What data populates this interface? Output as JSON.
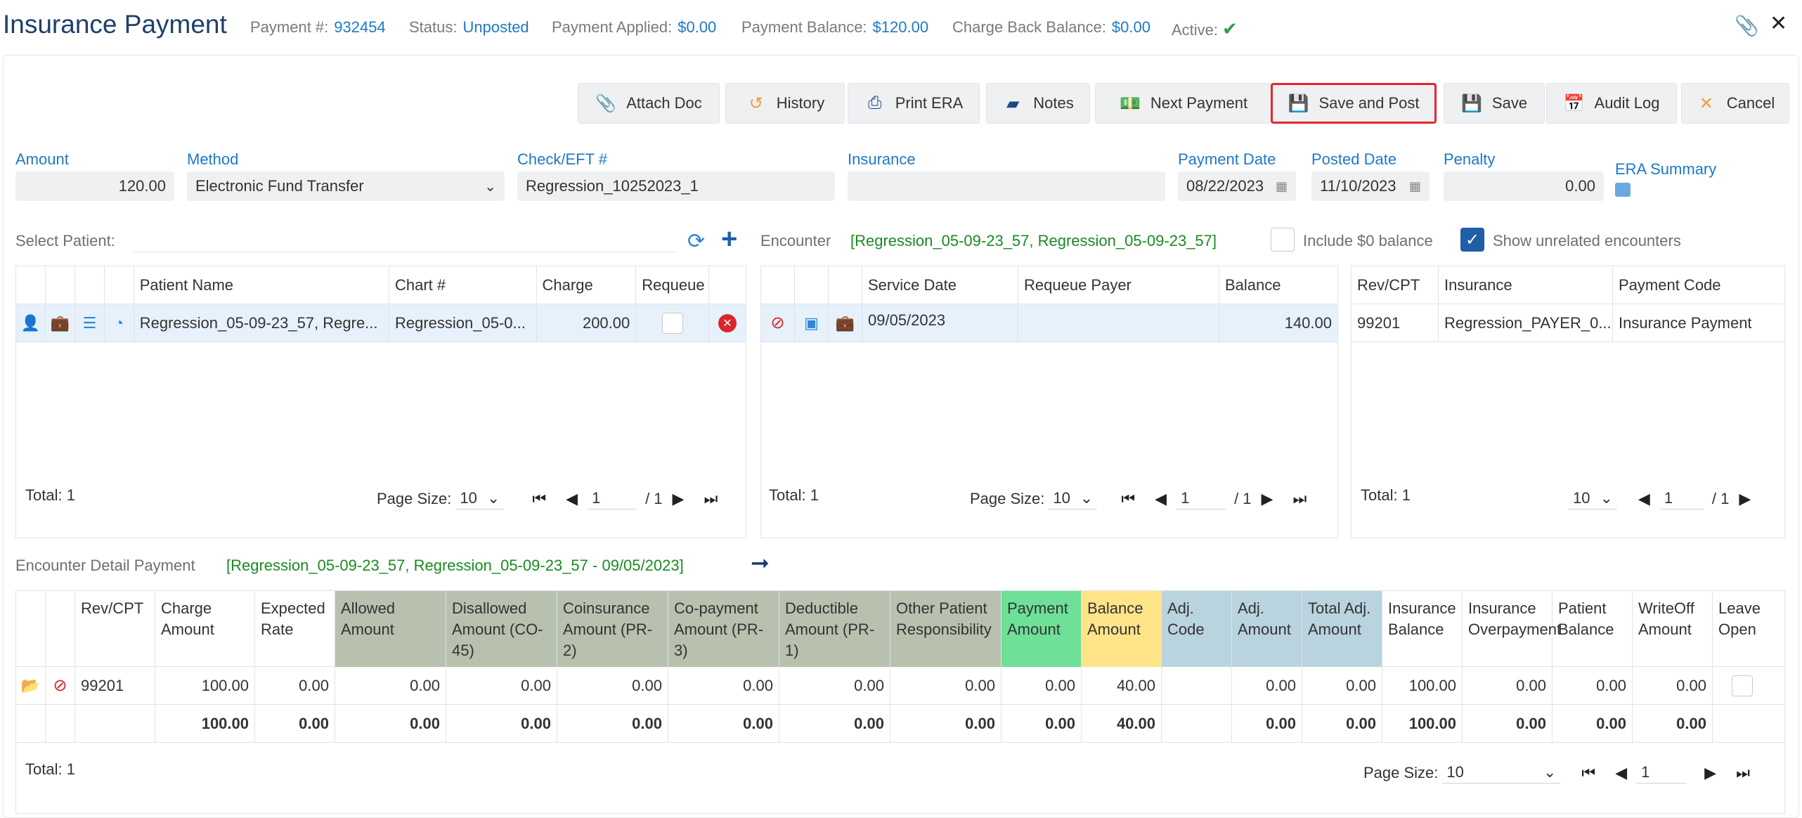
{
  "header": {
    "title": "Insurance Payment",
    "payment_no_label": "Payment #:",
    "payment_no": "932454",
    "status_label": "Status:",
    "status": "Unposted",
    "applied_label": "Payment Applied:",
    "applied": "$0.00",
    "balance_label": "Payment Balance:",
    "balance": "$120.00",
    "chargeback_label": "Charge Back Balance:",
    "chargeback": "$0.00",
    "active_label": "Active:"
  },
  "toolbar": {
    "attach_doc": "Attach Doc",
    "history": "History",
    "print_era": "Print ERA",
    "notes": "Notes",
    "next_payment": "Next Payment",
    "save_and_post": "Save and Post",
    "save": "Save",
    "audit_log": "Audit Log",
    "cancel": "Cancel"
  },
  "form": {
    "amount_label": "Amount",
    "amount": "120.00",
    "method_label": "Method",
    "method": "Electronic Fund Transfer",
    "check_label": "Check/EFT #",
    "check": "Regression_10252023_1",
    "insurance_label": "Insurance",
    "insurance": "",
    "payment_date_label": "Payment Date",
    "payment_date": "08/22/2023",
    "posted_date_label": "Posted Date",
    "posted_date": "11/10/2023",
    "penalty_label": "Penalty",
    "penalty": "0.00",
    "era_summary_label": "ERA Summary"
  },
  "select_patient": {
    "label": "Select Patient:",
    "encounter_label": "Encounter",
    "encounter_value": "[Regression_05-09-23_57, Regression_05-09-23_57]",
    "include_zero_label": "Include $0 balance",
    "show_unrelated_label": "Show unrelated encounters"
  },
  "patient_grid": {
    "headers": [
      "Patient Name",
      "Chart #",
      "Charge",
      "Requeue"
    ],
    "row": {
      "name": "Regression_05-09-23_57, Regre...",
      "chart": "Regression_05-0...",
      "charge": "200.00"
    },
    "total": "Total: 1",
    "page_size_label": "Page Size:",
    "page_size": "10",
    "page": "1",
    "of_pages": "/ 1"
  },
  "encounter_grid": {
    "headers": [
      "Service Date",
      "Requeue Payer",
      "Balance"
    ],
    "row": {
      "service_date": "09/05/2023",
      "requeue_payer": "",
      "balance": "140.00"
    },
    "total": "Total: 1",
    "page_size_label": "Page Size:",
    "page_size": "10",
    "page": "1",
    "of_pages": "/ 1"
  },
  "cpt_grid": {
    "headers": [
      "Rev/CPT",
      "Insurance",
      "Payment Code"
    ],
    "row": {
      "rev_cpt": "99201",
      "insurance": "Regression_PAYER_0...",
      "payment_code": "Insurance Payment"
    },
    "total": "Total: 1",
    "page_size": "10",
    "page": "1",
    "of_pages": "/ 1"
  },
  "detail": {
    "label": "Encounter Detail Payment",
    "value": "[Regression_05-09-23_57, Regression_05-09-23_57 - 09/05/2023]",
    "headers": {
      "rev_cpt": "Rev/CPT",
      "charge_amount": "Charge Amount",
      "expected_rate": "Expected Rate",
      "allowed_amount": "Allowed Amount",
      "disallowed": "Disallowed Amount (CO-45)",
      "coinsurance": "Coinsurance Amount (PR-2)",
      "copayment": "Co-payment Amount (PR-3)",
      "deductible": "Deductible Amount (PR-1)",
      "other_resp": "Other Patient Responsibility",
      "payment_amount": "Payment Amount",
      "balance_amount": "Balance Amount",
      "adj_code": "Adj. Code",
      "adj_amount": "Adj. Amount",
      "total_adj": "Total Adj. Amount",
      "ins_balance": "Insurance Balance",
      "ins_overpayment": "Insurance Overpayment",
      "patient_balance": "Patient Balance",
      "writeoff": "WriteOff Amount",
      "leave_open": "Leave Open"
    },
    "row": {
      "rev_cpt": "99201",
      "charge_amount": "100.00",
      "expected_rate": "0.00",
      "allowed_amount": "0.00",
      "disallowed": "0.00",
      "coinsurance": "0.00",
      "copayment": "0.00",
      "deductible": "0.00",
      "other_resp": "0.00",
      "payment_amount": "0.00",
      "balance_amount": "40.00",
      "adj_code": "",
      "adj_amount": "0.00",
      "total_adj": "0.00",
      "ins_balance": "100.00",
      "ins_overpayment": "0.00",
      "patient_balance": "0.00",
      "writeoff": "0.00"
    },
    "totals": {
      "charge_amount": "100.00",
      "expected_rate": "0.00",
      "allowed_amount": "0.00",
      "disallowed": "0.00",
      "coinsurance": "0.00",
      "copayment": "0.00",
      "deductible": "0.00",
      "other_resp": "0.00",
      "payment_amount": "0.00",
      "balance_amount": "40.00",
      "adj_amount": "0.00",
      "total_adj": "0.00",
      "ins_balance": "100.00",
      "ins_overpayment": "0.00",
      "patient_balance": "0.00",
      "writeoff": "0.00"
    },
    "total": "Total: 1",
    "page_size_label": "Page Size:",
    "page_size": "10",
    "page": "1"
  }
}
